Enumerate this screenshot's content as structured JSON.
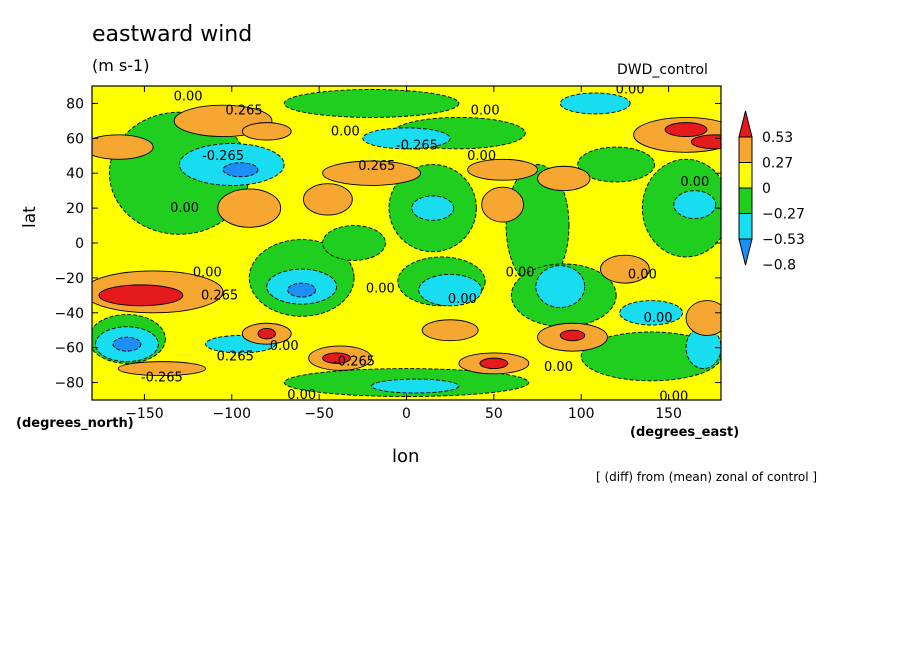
{
  "header": {
    "title": "eastward wind",
    "units": "(m s-1)",
    "run_name": "DWD_control",
    "note": "[ (diff) from (mean) zonal of control ]"
  },
  "chart_data": {
    "type": "heatmap",
    "xlabel": "lon",
    "x_unit_label": "(degrees_east)",
    "ylabel": "lat",
    "y_unit_label": "(degrees_north)",
    "xlim": [
      -180,
      180
    ],
    "ylim": [
      -90,
      90
    ],
    "x_ticks": [
      -150,
      -100,
      -50,
      0,
      50,
      100,
      150
    ],
    "x_tick_labels": [
      "−150",
      "−100",
      "−50",
      "0",
      "50",
      "100",
      "150"
    ],
    "y_ticks": [
      80,
      60,
      40,
      20,
      0,
      -20,
      -40,
      -60,
      -80
    ],
    "y_tick_labels": [
      "80",
      "60",
      "40",
      "20",
      "0",
      "−20",
      "−40",
      "−60",
      "−80"
    ],
    "colorbar": {
      "levels": [
        0.53,
        0.27,
        0,
        -0.27,
        -0.53,
        -0.8
      ],
      "labels": [
        "0.53",
        "0.27",
        "0",
        "−0.27",
        "−0.53",
        "−0.8"
      ],
      "colors": [
        "#e41a1c",
        "#f5a732",
        "#ffff00",
        "#1fce1f",
        "#18dcf0",
        "#1b8ff5"
      ],
      "over_color": "#e41a1c",
      "under_color": "#1b8ff5"
    },
    "background_class": "0 to 0.27",
    "contour_labels": [
      {
        "text": "0.00",
        "lon": -125,
        "lat": 84
      },
      {
        "text": "0.265",
        "lon": -93,
        "lat": 76
      },
      {
        "text": "0.00",
        "lon": 45,
        "lat": 76
      },
      {
        "text": "0.00",
        "lon": 128,
        "lat": 88
      },
      {
        "text": "0.00",
        "lon": -35,
        "lat": 64
      },
      {
        "text": "-0.265",
        "lon": 6,
        "lat": 56
      },
      {
        "text": "0.00",
        "lon": 43,
        "lat": 50
      },
      {
        "text": "-0.265",
        "lon": -105,
        "lat": 50
      },
      {
        "text": "0.265",
        "lon": -17,
        "lat": 44
      },
      {
        "text": "0.00",
        "lon": 165,
        "lat": 35
      },
      {
        "text": "0.00",
        "lon": -127,
        "lat": 20
      },
      {
        "text": "0.00",
        "lon": -114,
        "lat": -17
      },
      {
        "text": "0.265",
        "lon": -107,
        "lat": -30
      },
      {
        "text": "0.00",
        "lon": -15,
        "lat": -26
      },
      {
        "text": "0.00",
        "lon": 65,
        "lat": -17
      },
      {
        "text": "0.00",
        "lon": 32,
        "lat": -32
      },
      {
        "text": "0.00",
        "lon": 135,
        "lat": -18
      },
      {
        "text": "0.00",
        "lon": 144,
        "lat": -43
      },
      {
        "text": "0.00",
        "lon": -70,
        "lat": -59
      },
      {
        "text": "0.265",
        "lon": -98,
        "lat": -65
      },
      {
        "text": "-0.265",
        "lon": -30,
        "lat": -68
      },
      {
        "text": "0.00",
        "lon": 87,
        "lat": -71
      },
      {
        "text": "-0.265",
        "lon": -140,
        "lat": -77
      },
      {
        "text": "0.00",
        "lon": -60,
        "lat": -87
      },
      {
        "text": "0.00",
        "lon": 153,
        "lat": -88
      }
    ],
    "regions": [
      {
        "class": "0.27 to 0.53",
        "lon": -105,
        "lat": 70,
        "rlon": 28,
        "rlat": 9
      },
      {
        "class": "0.27 to 0.53",
        "lon": -80,
        "lat": 64,
        "rlon": 14,
        "rlat": 5
      },
      {
        "class": "0.27 to 0.53",
        "lon": -165,
        "lat": 55,
        "rlon": 20,
        "rlat": 7
      },
      {
        "class": "0.27 to 0.53",
        "lon": 160,
        "lat": 62,
        "rlon": 30,
        "rlat": 10
      },
      {
        "class": "above 0.53",
        "lon": 160,
        "lat": 65,
        "rlon": 12,
        "rlat": 4
      },
      {
        "class": "above 0.53",
        "lon": 177,
        "lat": 58,
        "rlon": 14,
        "rlat": 4
      },
      {
        "class": "0.27 to 0.53",
        "lon": -20,
        "lat": 40,
        "rlon": 28,
        "rlat": 7
      },
      {
        "class": "0.27 to 0.53",
        "lon": 55,
        "lat": 42,
        "rlon": 20,
        "rlat": 6
      },
      {
        "class": "0.27 to 0.53",
        "lon": 90,
        "lat": 37,
        "rlon": 15,
        "rlat": 7
      },
      {
        "class": "0.27 to 0.53",
        "lon": -90,
        "lat": 20,
        "rlon": 18,
        "rlat": 11
      },
      {
        "class": "0.27 to 0.53",
        "lon": -45,
        "lat": 25,
        "rlon": 14,
        "rlat": 9
      },
      {
        "class": "0.27 to 0.53",
        "lon": 55,
        "lat": 22,
        "rlon": 12,
        "rlat": 10
      },
      {
        "class": "0.27 to 0.53",
        "lon": 125,
        "lat": -15,
        "rlon": 14,
        "rlat": 8
      },
      {
        "class": "0.27 to 0.53",
        "lon": -145,
        "lat": -28,
        "rlon": 40,
        "rlat": 12
      },
      {
        "class": "above 0.53",
        "lon": -152,
        "lat": -30,
        "rlon": 24,
        "rlat": 6
      },
      {
        "class": "0.27 to 0.53",
        "lon": -80,
        "lat": -52,
        "rlon": 14,
        "rlat": 6
      },
      {
        "class": "above 0.53",
        "lon": -80,
        "lat": -52,
        "rlon": 5,
        "rlat": 3
      },
      {
        "class": "0.27 to 0.53",
        "lon": -38,
        "lat": -66,
        "rlon": 18,
        "rlat": 7
      },
      {
        "class": "above 0.53",
        "lon": -40,
        "lat": -66,
        "rlon": 8,
        "rlat": 3
      },
      {
        "class": "0.27 to 0.53",
        "lon": 25,
        "lat": -50,
        "rlon": 16,
        "rlat": 6
      },
      {
        "class": "0.27 to 0.53",
        "lon": 50,
        "lat": -69,
        "rlon": 20,
        "rlat": 6
      },
      {
        "class": "above 0.53",
        "lon": 50,
        "lat": -69,
        "rlon": 8,
        "rlat": 3
      },
      {
        "class": "0.27 to 0.53",
        "lon": 95,
        "lat": -54,
        "rlon": 20,
        "rlat": 8
      },
      {
        "class": "above 0.53",
        "lon": 95,
        "lat": -53,
        "rlon": 7,
        "rlat": 3
      },
      {
        "class": "0.27 to 0.53",
        "lon": 172,
        "lat": -43,
        "rlon": 12,
        "rlat": 10
      },
      {
        "class": "0.27 to 0.53",
        "lon": -140,
        "lat": -72,
        "rlon": 25,
        "rlat": 4
      },
      {
        "class": "-0.27 to 0",
        "lon": -130,
        "lat": 40,
        "rlon": 40,
        "rlat": 35
      },
      {
        "class": "-0.27 to 0",
        "lon": -20,
        "lat": 80,
        "rlon": 50,
        "rlat": 8
      },
      {
        "class": "-0.27 to 0",
        "lon": 30,
        "lat": 63,
        "rlon": 38,
        "rlat": 9
      },
      {
        "class": "-0.27 to 0",
        "lon": 15,
        "lat": 20,
        "rlon": 25,
        "rlat": 25
      },
      {
        "class": "-0.27 to 0",
        "lon": 75,
        "lat": 10,
        "rlon": 18,
        "rlat": 35
      },
      {
        "class": "-0.27 to 0",
        "lon": 160,
        "lat": 20,
        "rlon": 25,
        "rlat": 28
      },
      {
        "class": "-0.27 to 0",
        "lon": -60,
        "lat": -20,
        "rlon": 30,
        "rlat": 22
      },
      {
        "class": "-0.27 to 0",
        "lon": 20,
        "lat": -22,
        "rlon": 25,
        "rlat": 14
      },
      {
        "class": "-0.27 to 0",
        "lon": 90,
        "lat": -30,
        "rlon": 30,
        "rlat": 18
      },
      {
        "class": "-0.27 to 0",
        "lon": -160,
        "lat": -55,
        "rlon": 22,
        "rlat": 14
      },
      {
        "class": "-0.27 to 0",
        "lon": 0,
        "lat": -80,
        "rlon": 70,
        "rlat": 8
      },
      {
        "class": "-0.27 to 0",
        "lon": 140,
        "lat": -65,
        "rlon": 40,
        "rlat": 14
      },
      {
        "class": "-0.27 to 0",
        "lon": -30,
        "lat": 0,
        "rlon": 18,
        "rlat": 10
      },
      {
        "class": "-0.27 to 0",
        "lon": 120,
        "lat": 45,
        "rlon": 22,
        "rlat": 10
      },
      {
        "class": "-0.53 to -0.27",
        "lon": -100,
        "lat": 45,
        "rlon": 30,
        "rlat": 12
      },
      {
        "class": "-0.8 to -0.53",
        "lon": -95,
        "lat": 42,
        "rlon": 10,
        "rlat": 4
      },
      {
        "class": "-0.53 to -0.27",
        "lon": 0,
        "lat": 60,
        "rlon": 25,
        "rlat": 6
      },
      {
        "class": "-0.53 to -0.27",
        "lon": 108,
        "lat": 80,
        "rlon": 20,
        "rlat": 6
      },
      {
        "class": "-0.53 to -0.27",
        "lon": 15,
        "lat": 20,
        "rlon": 12,
        "rlat": 7
      },
      {
        "class": "-0.53 to -0.27",
        "lon": 165,
        "lat": 22,
        "rlon": 12,
        "rlat": 8
      },
      {
        "class": "-0.53 to -0.27",
        "lon": -60,
        "lat": -25,
        "rlon": 20,
        "rlat": 10
      },
      {
        "class": "-0.8 to -0.53",
        "lon": -60,
        "lat": -27,
        "rlon": 8,
        "rlat": 4
      },
      {
        "class": "-0.53 to -0.27",
        "lon": 25,
        "lat": -27,
        "rlon": 18,
        "rlat": 9
      },
      {
        "class": "-0.53 to -0.27",
        "lon": 88,
        "lat": -25,
        "rlon": 14,
        "rlat": 12
      },
      {
        "class": "-0.53 to -0.27",
        "lon": -160,
        "lat": -58,
        "rlon": 18,
        "rlat": 10
      },
      {
        "class": "-0.8 to -0.53",
        "lon": -160,
        "lat": -58,
        "rlon": 8,
        "rlat": 4
      },
      {
        "class": "-0.53 to -0.27",
        "lon": -95,
        "lat": -58,
        "rlon": 20,
        "rlat": 5
      },
      {
        "class": "-0.53 to -0.27",
        "lon": 140,
        "lat": -40,
        "rlon": 18,
        "rlat": 7
      },
      {
        "class": "-0.53 to -0.27",
        "lon": 170,
        "lat": -60,
        "rlon": 10,
        "rlat": 12
      },
      {
        "class": "-0.53 to -0.27",
        "lon": 5,
        "lat": -82,
        "rlon": 25,
        "rlat": 4
      }
    ]
  }
}
